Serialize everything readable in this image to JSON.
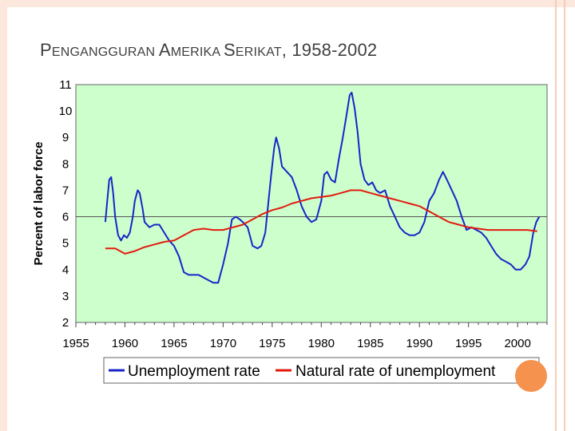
{
  "colors": {
    "plot_bg": "#ccffcc",
    "unemployment": "#1a24c8",
    "natural": "#e21b0f",
    "accent": "#f4924e"
  },
  "slide": {
    "title_first_cap": "P",
    "title_first_rest": "ENGANGGURAN ",
    "title_second_cap": "A",
    "title_second_rest": "MERIKA ",
    "title_third_cap": "S",
    "title_third_rest": "ERIKAT",
    "title_suffix": ", 1958-2002"
  },
  "chart_data": {
    "type": "line",
    "title": "PENGANGGURAN AMERIKA SERIKAT, 1958-2002",
    "xlabel": "",
    "ylabel": "Percent of labor force",
    "xlim": [
      1955,
      2003
    ],
    "ylim": [
      2,
      11
    ],
    "x_ticks": [
      1955,
      1960,
      1965,
      1970,
      1975,
      1980,
      1985,
      1990,
      1995,
      2000
    ],
    "y_ticks": [
      2,
      3,
      4,
      5,
      6,
      7,
      8,
      9,
      10,
      11
    ],
    "reference_line": 6,
    "legend_position": "bottom",
    "series": [
      {
        "name": "Unemployment rate",
        "points": [
          [
            1958.0,
            5.8
          ],
          [
            1958.2,
            6.6
          ],
          [
            1958.4,
            7.4
          ],
          [
            1958.6,
            7.5
          ],
          [
            1958.8,
            6.9
          ],
          [
            1959.0,
            6.0
          ],
          [
            1959.3,
            5.3
          ],
          [
            1959.6,
            5.1
          ],
          [
            1959.9,
            5.3
          ],
          [
            1960.2,
            5.2
          ],
          [
            1960.5,
            5.4
          ],
          [
            1960.8,
            6.0
          ],
          [
            1961.0,
            6.6
          ],
          [
            1961.3,
            7.0
          ],
          [
            1961.5,
            6.9
          ],
          [
            1961.8,
            6.3
          ],
          [
            1962.0,
            5.8
          ],
          [
            1962.5,
            5.6
          ],
          [
            1963.0,
            5.7
          ],
          [
            1963.5,
            5.7
          ],
          [
            1964.0,
            5.4
          ],
          [
            1964.5,
            5.1
          ],
          [
            1965.0,
            4.9
          ],
          [
            1965.5,
            4.5
          ],
          [
            1966.0,
            3.9
          ],
          [
            1966.5,
            3.8
          ],
          [
            1967.0,
            3.8
          ],
          [
            1967.5,
            3.8
          ],
          [
            1968.0,
            3.7
          ],
          [
            1968.5,
            3.6
          ],
          [
            1969.0,
            3.5
          ],
          [
            1969.5,
            3.5
          ],
          [
            1970.0,
            4.2
          ],
          [
            1970.5,
            5.0
          ],
          [
            1970.9,
            5.9
          ],
          [
            1971.3,
            6.0
          ],
          [
            1971.7,
            5.9
          ],
          [
            1972.0,
            5.8
          ],
          [
            1972.5,
            5.6
          ],
          [
            1973.0,
            4.9
          ],
          [
            1973.5,
            4.8
          ],
          [
            1973.9,
            4.9
          ],
          [
            1974.3,
            5.4
          ],
          [
            1974.6,
            6.5
          ],
          [
            1974.9,
            7.6
          ],
          [
            1975.2,
            8.6
          ],
          [
            1975.4,
            9.0
          ],
          [
            1975.7,
            8.6
          ],
          [
            1976.0,
            7.9
          ],
          [
            1976.5,
            7.7
          ],
          [
            1977.0,
            7.5
          ],
          [
            1977.5,
            7.0
          ],
          [
            1978.0,
            6.4
          ],
          [
            1978.5,
            6.0
          ],
          [
            1979.0,
            5.8
          ],
          [
            1979.5,
            5.9
          ],
          [
            1980.0,
            6.6
          ],
          [
            1980.3,
            7.6
          ],
          [
            1980.6,
            7.7
          ],
          [
            1981.0,
            7.4
          ],
          [
            1981.4,
            7.3
          ],
          [
            1981.8,
            8.2
          ],
          [
            1982.2,
            9.0
          ],
          [
            1982.6,
            9.9
          ],
          [
            1982.9,
            10.6
          ],
          [
            1983.1,
            10.7
          ],
          [
            1983.4,
            10.1
          ],
          [
            1983.7,
            9.2
          ],
          [
            1984.0,
            8.0
          ],
          [
            1984.4,
            7.4
          ],
          [
            1984.8,
            7.2
          ],
          [
            1985.2,
            7.3
          ],
          [
            1985.6,
            7.0
          ],
          [
            1986.0,
            6.9
          ],
          [
            1986.5,
            7.0
          ],
          [
            1987.0,
            6.4
          ],
          [
            1987.5,
            6.0
          ],
          [
            1988.0,
            5.6
          ],
          [
            1988.5,
            5.4
          ],
          [
            1989.0,
            5.3
          ],
          [
            1989.5,
            5.3
          ],
          [
            1990.0,
            5.4
          ],
          [
            1990.5,
            5.8
          ],
          [
            1991.0,
            6.6
          ],
          [
            1991.5,
            6.9
          ],
          [
            1992.0,
            7.4
          ],
          [
            1992.4,
            7.7
          ],
          [
            1992.8,
            7.4
          ],
          [
            1993.3,
            7.0
          ],
          [
            1993.8,
            6.6
          ],
          [
            1994.3,
            6.0
          ],
          [
            1994.8,
            5.5
          ],
          [
            1995.3,
            5.6
          ],
          [
            1995.8,
            5.5
          ],
          [
            1996.3,
            5.4
          ],
          [
            1996.8,
            5.2
          ],
          [
            1997.3,
            4.9
          ],
          [
            1997.8,
            4.6
          ],
          [
            1998.3,
            4.4
          ],
          [
            1998.8,
            4.3
          ],
          [
            1999.3,
            4.2
          ],
          [
            1999.8,
            4.0
          ],
          [
            2000.3,
            4.0
          ],
          [
            2000.8,
            4.2
          ],
          [
            2001.2,
            4.5
          ],
          [
            2001.6,
            5.4
          ],
          [
            2001.9,
            5.8
          ],
          [
            2002.2,
            6.0
          ]
        ]
      },
      {
        "name": "Natural rate of unemployment",
        "points": [
          [
            1958,
            4.8
          ],
          [
            1959,
            4.8
          ],
          [
            1960,
            4.6
          ],
          [
            1961,
            4.7
          ],
          [
            1962,
            4.85
          ],
          [
            1963,
            4.95
          ],
          [
            1964,
            5.05
          ],
          [
            1965,
            5.1
          ],
          [
            1966,
            5.3
          ],
          [
            1967,
            5.5
          ],
          [
            1968,
            5.55
          ],
          [
            1969,
            5.5
          ],
          [
            1970,
            5.5
          ],
          [
            1971,
            5.6
          ],
          [
            1972,
            5.7
          ],
          [
            1973,
            5.9
          ],
          [
            1974,
            6.1
          ],
          [
            1975,
            6.25
          ],
          [
            1976,
            6.35
          ],
          [
            1977,
            6.5
          ],
          [
            1978,
            6.6
          ],
          [
            1979,
            6.7
          ],
          [
            1980,
            6.75
          ],
          [
            1981,
            6.8
          ],
          [
            1982,
            6.9
          ],
          [
            1983,
            7.0
          ],
          [
            1984,
            7.0
          ],
          [
            1985,
            6.9
          ],
          [
            1986,
            6.8
          ],
          [
            1987,
            6.7
          ],
          [
            1988,
            6.6
          ],
          [
            1989,
            6.5
          ],
          [
            1990,
            6.4
          ],
          [
            1991,
            6.2
          ],
          [
            1992,
            6.0
          ],
          [
            1993,
            5.8
          ],
          [
            1994,
            5.7
          ],
          [
            1995,
            5.6
          ],
          [
            1996,
            5.55
          ],
          [
            1997,
            5.5
          ],
          [
            1998,
            5.5
          ],
          [
            1999,
            5.5
          ],
          [
            2000,
            5.5
          ],
          [
            2001,
            5.5
          ],
          [
            2002,
            5.45
          ]
        ]
      }
    ]
  }
}
